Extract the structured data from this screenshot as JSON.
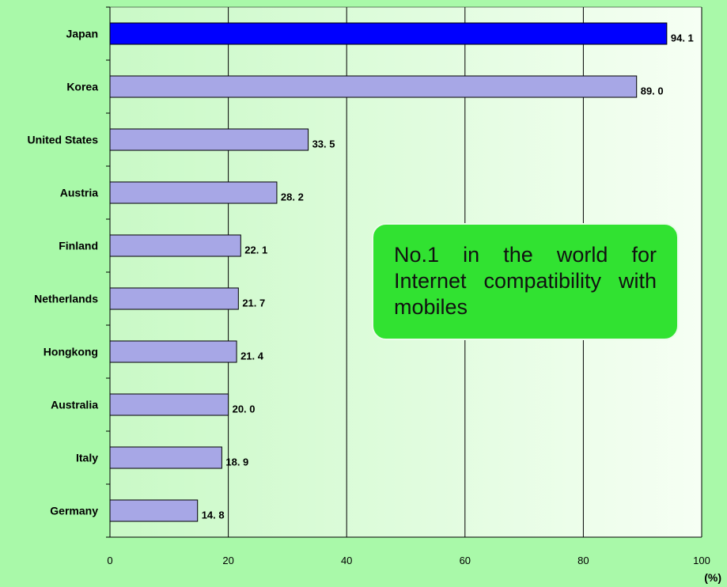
{
  "chart_data": {
    "type": "bar",
    "orientation": "horizontal",
    "categories": [
      "Japan",
      "Korea",
      "United States",
      "Austria",
      "Finland",
      "Netherlands",
      "Hongkong",
      "Australia",
      "Italy",
      "Germany"
    ],
    "values": [
      94.1,
      89.0,
      33.5,
      28.2,
      22.1,
      21.7,
      21.4,
      20.0,
      18.9,
      14.8
    ],
    "value_labels": [
      "94. 1",
      "89. 0",
      "33. 5",
      "28. 2",
      "22. 1",
      "21. 7",
      "21. 4",
      "20. 0",
      "18. 9",
      "14. 8"
    ],
    "xlim": [
      0,
      100
    ],
    "xticks": [
      0,
      20,
      40,
      60,
      80,
      100
    ],
    "xunit": "(%)",
    "grid": "vertical",
    "colors": {
      "highlight_bar": "#0000ff",
      "bar": "#a7a7e6",
      "background": "#a9f9a9",
      "plot_gradient_start": "#c9f9c6",
      "plot_gradient_end": "#f6fff4"
    },
    "highlight_category": "Japan"
  },
  "callout": {
    "text": "No.1 in the world for Internet compatibility with mobiles"
  }
}
